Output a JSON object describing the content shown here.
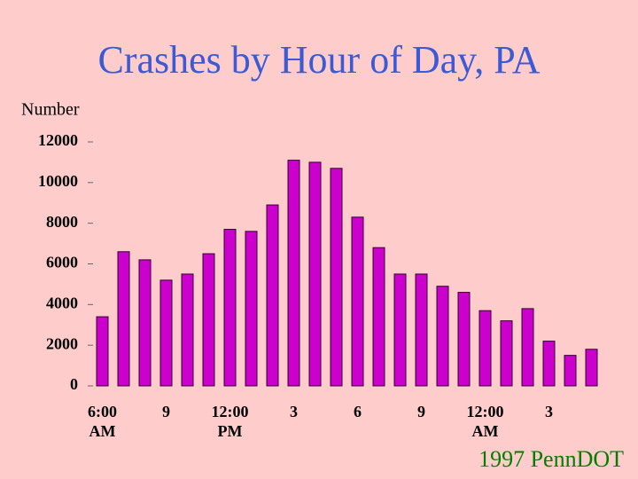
{
  "chart_data": {
    "type": "bar",
    "title": "Crashes by Hour of Day, PA",
    "y_label": "Number",
    "source": "1997 PennDOT",
    "categories": [
      "6:00 AM",
      null,
      null,
      "9",
      null,
      null,
      "12:00 PM",
      null,
      null,
      "3",
      null,
      null,
      "6",
      null,
      null,
      "9",
      null,
      null,
      "12:00 AM",
      null,
      null,
      "3",
      null,
      null
    ],
    "values": [
      3400,
      6600,
      6200,
      5200,
      5500,
      6500,
      7700,
      7600,
      8900,
      11100,
      11000,
      10700,
      8300,
      6800,
      5500,
      5500,
      4900,
      4600,
      3700,
      3200,
      3800,
      2200,
      1500,
      1800
    ],
    "color": "#cc00cc",
    "ylim": [
      0,
      12000
    ],
    "yticks": [
      0,
      2000,
      4000,
      6000,
      8000,
      10000,
      12000
    ]
  }
}
